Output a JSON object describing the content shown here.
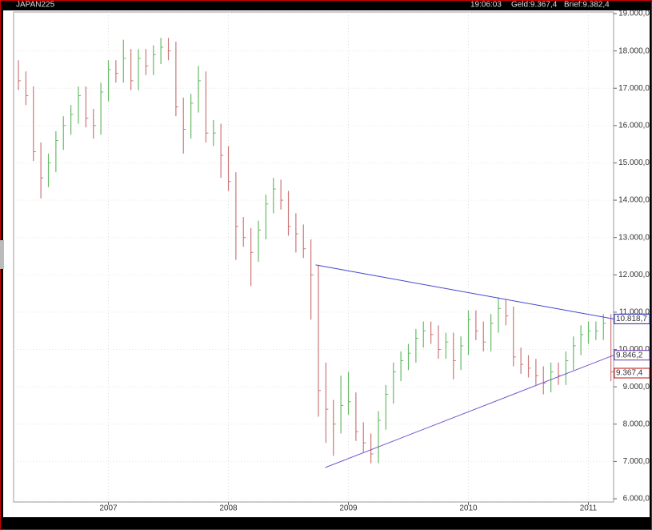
{
  "chart_data": {
    "type": "ohlc",
    "title": "JAPAN225",
    "time": "19:06:03",
    "bid": "Geld:9.367,4",
    "ask": "Brief:9.382,4",
    "up_color": "#66bb66",
    "down_color": "#cc7777",
    "xlim": [
      2006.21,
      2011.21
    ],
    "xticks": [
      2007,
      2008,
      2009,
      2010,
      2011
    ],
    "ylim": [
      6000,
      19000
    ],
    "yticks": [
      {
        "value": 6000,
        "label": "6.000,0"
      },
      {
        "value": 7000,
        "label": "7.000,0"
      },
      {
        "value": 8000,
        "label": "8.000,0"
      },
      {
        "value": 9000,
        "label": "9.000,0"
      },
      {
        "value": 10000,
        "label": "10.000,0"
      },
      {
        "value": 11000,
        "label": "11.000,0"
      },
      {
        "value": 12000,
        "label": "12.000,0"
      },
      {
        "value": 13000,
        "label": "13.000,0"
      },
      {
        "value": 14000,
        "label": "14.000,0"
      },
      {
        "value": 15000,
        "label": "15.000,0"
      },
      {
        "value": 16000,
        "label": "16.000,0"
      },
      {
        "value": 17000,
        "label": "17.000,0"
      },
      {
        "value": 18000,
        "label": "18.000,0"
      },
      {
        "value": 19000,
        "label": "19.000,0"
      }
    ],
    "grid": true,
    "x": [
      2006.25,
      2006.3125,
      2006.375,
      2006.4375,
      2006.5,
      2006.5625,
      2006.625,
      2006.6875,
      2006.75,
      2006.8125,
      2006.875,
      2006.9375,
      2007,
      2007.0625,
      2007.125,
      2007.1875,
      2007.25,
      2007.3125,
      2007.375,
      2007.4375,
      2007.5,
      2007.5625,
      2007.625,
      2007.6875,
      2007.75,
      2007.8125,
      2007.875,
      2007.9375,
      2008,
      2008.0625,
      2008.125,
      2008.1875,
      2008.25,
      2008.3125,
      2008.375,
      2008.4375,
      2008.5,
      2008.5625,
      2008.625,
      2008.6875,
      2008.75,
      2008.8125,
      2008.875,
      2008.9375,
      2009,
      2009.0625,
      2009.125,
      2009.1875,
      2009.25,
      2009.3125,
      2009.375,
      2009.4375,
      2009.5,
      2009.5625,
      2009.625,
      2009.6875,
      2009.75,
      2009.8125,
      2009.875,
      2009.9375,
      2010,
      2010.0625,
      2010.125,
      2010.1875,
      2010.25,
      2010.3125,
      2010.375,
      2010.4375,
      2010.5,
      2010.5625,
      2010.625,
      2010.6875,
      2010.75,
      2010.8125,
      2010.875,
      2010.9375,
      2011,
      2011.0625,
      2011.125,
      2011.1875
    ],
    "high": [
      17750,
      17450,
      17050,
      15550,
      15250,
      15850,
      16250,
      16550,
      17050,
      17050,
      16450,
      17150,
      17750,
      17750,
      18300,
      18050,
      18050,
      18050,
      18150,
      18350,
      18350,
      18250,
      16750,
      16850,
      17600,
      17450,
      16150,
      16050,
      15450,
      14750,
      13550,
      13250,
      13450,
      14150,
      14600,
      14550,
      14250,
      13650,
      13350,
      12950,
      12250,
      9650,
      8650,
      9300,
      9400,
      8850,
      8050,
      7750,
      8350,
      9050,
      9650,
      9950,
      10150,
      10550,
      10750,
      10750,
      10650,
      10450,
      10450,
      10350,
      11050,
      11050,
      10750,
      10950,
      11400,
      11350,
      11150,
      10050,
      9850,
      9750,
      9550,
      9650,
      9650,
      9950,
      10350,
      10650,
      10750,
      10750,
      10950,
      10950
    ],
    "low": [
      16950,
      16550,
      15050,
      14050,
      14350,
      14750,
      15350,
      15750,
      16050,
      15950,
      15650,
      15750,
      16650,
      17150,
      17150,
      16950,
      16950,
      17350,
      17350,
      17650,
      17750,
      16250,
      15250,
      15650,
      16350,
      15550,
      15450,
      14600,
      14250,
      12400,
      12750,
      11700,
      12350,
      12950,
      13650,
      13750,
      13050,
      12600,
      12450,
      10800,
      8200,
      7500,
      7150,
      7750,
      8250,
      7550,
      7250,
      6950,
      6950,
      7850,
      8550,
      9150,
      9450,
      9650,
      10050,
      10150,
      9750,
      9750,
      9200,
      9450,
      9850,
      10250,
      9950,
      9950,
      10450,
      10650,
      9550,
      9350,
      9250,
      9050,
      8800,
      8850,
      9050,
      9050,
      9450,
      9850,
      10150,
      10250,
      10250,
      9150
    ],
    "close": [
      17200,
      16800,
      15300,
      14600,
      15000,
      15600,
      16000,
      16300,
      16800,
      16200,
      16000,
      16900,
      17500,
      17400,
      17800,
      17200,
      17800,
      17600,
      17900,
      18100,
      18000,
      16500,
      15900,
      16600,
      17200,
      15800,
      15800,
      15200,
      14500,
      13300,
      13000,
      12600,
      13200,
      13900,
      14300,
      14000,
      13300,
      13100,
      12700,
      12000,
      8900,
      8400,
      8000,
      8500,
      8600,
      7800,
      7500,
      7200,
      8100,
      8800,
      9400,
      9700,
      9900,
      10300,
      10500,
      10400,
      10000,
      10200,
      9700,
      10100,
      10800,
      10500,
      10200,
      10700,
      11100,
      10900,
      9800,
      9600,
      9500,
      9300,
      9100,
      9400,
      9300,
      9700,
      10100,
      10400,
      10500,
      10500,
      10700,
      9400
    ],
    "trendlines": [
      {
        "x": [
          2008.727,
          2011.21
        ],
        "y": [
          12266,
          10818.7
        ],
        "color": "#4444cc"
      },
      {
        "x": [
          2008.807,
          2011.21
        ],
        "y": [
          6837,
          9846.2
        ],
        "color": "#7755cc"
      }
    ],
    "markers": [
      {
        "value": 10818.7,
        "label": "10.818,7",
        "color": "#2222aa"
      },
      {
        "value": 9846.2,
        "label": "9.846,2",
        "color": "#6633aa"
      },
      {
        "value": 9367.4,
        "label": "9.367,4",
        "color": "#bb1111"
      }
    ]
  }
}
